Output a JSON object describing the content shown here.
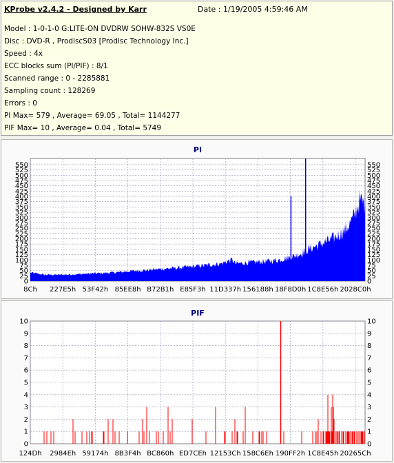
{
  "header": {
    "title": "KProbe v2.4.2 - Designed by Karr",
    "date": "Date : 1/19/2005 4:59:46 AM"
  },
  "info_lines": [
    "Model : 1-0-1-0 G:LITE-ON DVDRW SOHW-832S  VS0E",
    "Disc : DVD-R , ProdiscS03   [Prodisc Technology Inc.]",
    "Speed : 4x",
    "ECC blocks sum (PI/PIF) : 8/1",
    "Scanned range : 0 - 2285881",
    "Sampling count : 128269",
    "Errors : 0",
    "PI Max= 579 , Average= 69.05 , Total= 1144277",
    "PIF Max= 10 , Average= 0.04 , Total= 5749"
  ],
  "colors": {
    "bar": "#0000ff",
    "pif_bar": "#ff0000",
    "plot_bg": "#ffffff",
    "grid": "#9090c0",
    "title": "#000080"
  },
  "chart_data": [
    {
      "type": "area",
      "title": "PI",
      "ylim": [
        0,
        579
      ],
      "yticks": [
        0,
        25,
        50,
        75,
        100,
        125,
        150,
        175,
        200,
        225,
        250,
        275,
        300,
        325,
        350,
        375,
        400,
        425,
        450,
        475,
        500,
        525,
        550
      ],
      "xtick_labels": [
        "8Ch",
        "227E5h",
        "53F42h",
        "85EE8h",
        "B72B1h",
        "E85F3h",
        "11D337h",
        "156188h",
        "18F8D0h",
        "1C8E56h",
        "2028C0h"
      ],
      "x_range_lba": [
        0,
        2285881
      ],
      "series": [
        {
          "x": [
            0,
            100000,
            200000,
            300000,
            400000,
            500000,
            600000,
            700000,
            800000,
            900000,
            1000000,
            1100000,
            1200000,
            1300000,
            1350000,
            1380000,
            1400000,
            1500000,
            1600000,
            1700000,
            1750000,
            1800000,
            1850000,
            1900000,
            1950000,
            2000000,
            2050000,
            2100000,
            2150000,
            2200000,
            2250000,
            2285881
          ],
          "values": [
            40,
            30,
            30,
            32,
            35,
            38,
            42,
            48,
            52,
            58,
            62,
            68,
            75,
            82,
            95,
            100,
            82,
            88,
            92,
            100,
            108,
            118,
            130,
            150,
            165,
            180,
            195,
            215,
            240,
            290,
            380,
            360
          ]
        }
      ],
      "spikes": [
        [
          1780000,
          400
        ],
        [
          1880000,
          579
        ]
      ],
      "max": 579
    },
    {
      "type": "bar",
      "title": "PIF",
      "ylim": [
        0,
        10
      ],
      "yticks": [
        0,
        1,
        2,
        3,
        4,
        5,
        6,
        7,
        8,
        9,
        10
      ],
      "xtick_labels": [
        "124Dh",
        "2984Eh",
        "59174h",
        "8B3F4h",
        "BC860h",
        "ED7CEh",
        "12153Ch",
        "158C6Eh",
        "190FF2h",
        "1C8E45h",
        "20265Ch"
      ],
      "x_range_lba": [
        0,
        2285881
      ],
      "max": 10
    }
  ]
}
